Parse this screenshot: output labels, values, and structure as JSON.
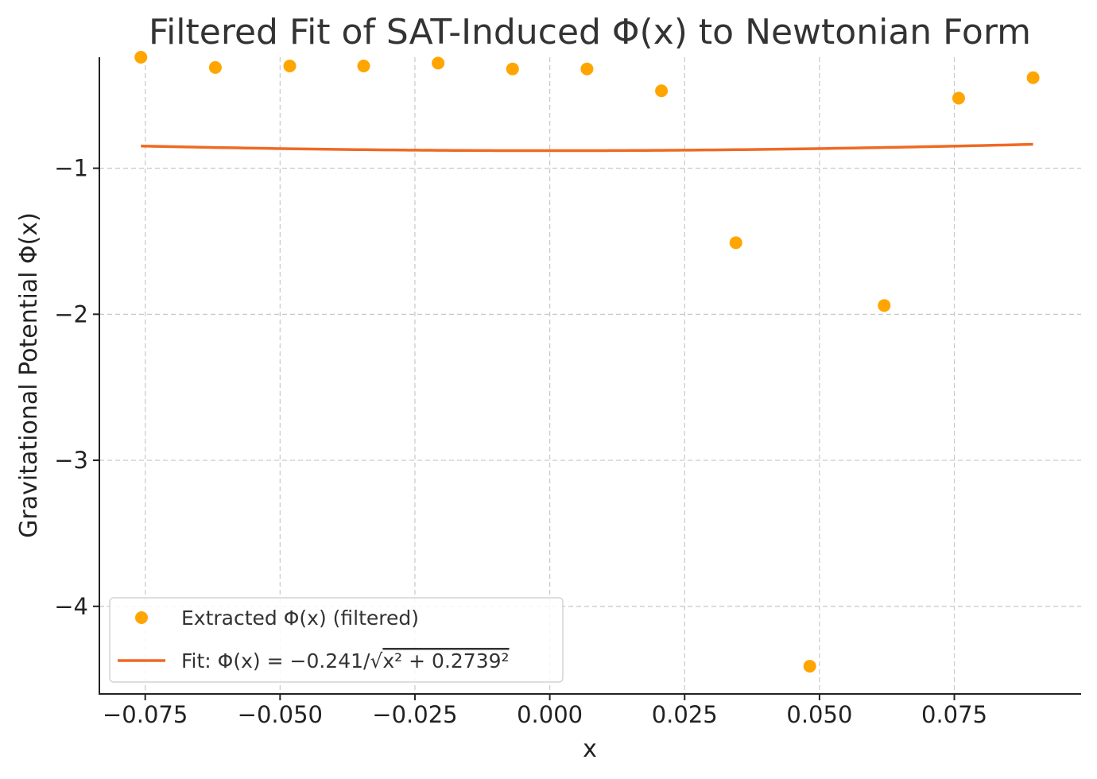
{
  "chart_data": {
    "type": "scatter",
    "title": "Filtered Fit of SAT-Induced Φ(x) to Newtonian Form",
    "xlabel": "x",
    "ylabel": "Gravitational Potential Φ(x)",
    "xlim": [
      -0.0835,
      0.0985
    ],
    "ylim": [
      -4.6,
      -0.24
    ],
    "x_ticks": [
      -0.075,
      -0.05,
      -0.025,
      0.0,
      0.025,
      0.05,
      0.075
    ],
    "x_tick_labels": [
      "−0.075",
      "−0.050",
      "−0.025",
      "0.000",
      "0.025",
      "0.050",
      "0.075"
    ],
    "y_ticks": [
      -1,
      -2,
      -3,
      -4
    ],
    "y_tick_labels": [
      "−1",
      "−2",
      "−3",
      "−4"
    ],
    "grid": true,
    "legend_position": "lower-left",
    "series": [
      {
        "name": "Extracted Φ(x) (filtered)",
        "kind": "scatter",
        "color": "#FFA500",
        "x": [
          -0.0758,
          -0.062,
          -0.0482,
          -0.0345,
          -0.0207,
          -0.0069,
          0.0069,
          0.0207,
          0.0345,
          0.0482,
          0.062,
          0.0758,
          0.0896
        ],
        "y": [
          -0.24,
          -0.31,
          -0.3,
          -0.3,
          -0.28,
          -0.32,
          -0.32,
          -0.47,
          -1.51,
          -4.41,
          -1.94,
          -0.52,
          -0.38
        ]
      },
      {
        "name": "Fit: Φ(x) = −0.241/√(x² + 0.2739²)",
        "kind": "line",
        "color": "#EE6A24",
        "A": 0.241,
        "b": 0.2739,
        "x_range": [
          -0.0758,
          0.0896
        ]
      }
    ]
  },
  "legend": {
    "scatter_label": "Extracted Φ(x) (filtered)",
    "fit_label_prefix": "Fit: Φ(x) = −0.241/",
    "fit_label_radicand": "x² + 0.2739²"
  }
}
